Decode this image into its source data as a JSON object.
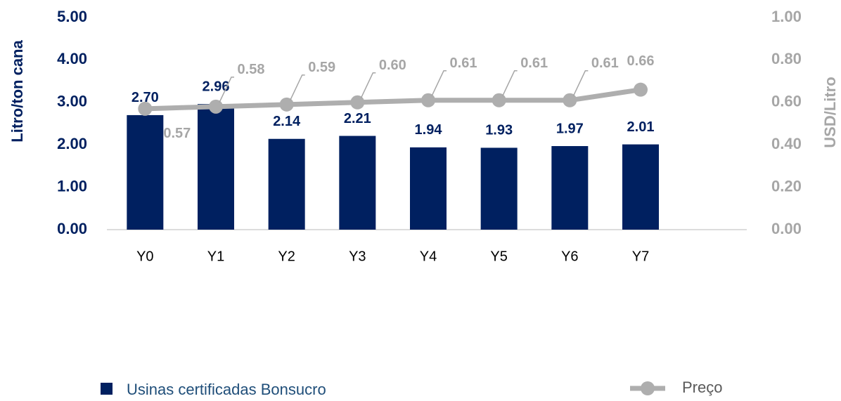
{
  "chart_data": {
    "type": "combo",
    "categories": [
      "Y0",
      "Y1",
      "Y2",
      "Y3",
      "Y4",
      "Y5",
      "Y6",
      "Y7",
      null
    ],
    "series": [
      {
        "name": "Usinas certificadas Bonsucro",
        "type": "bar",
        "color": "#002060",
        "values": [
          2.7,
          2.96,
          2.14,
          2.21,
          1.94,
          1.93,
          1.97,
          2.01,
          null
        ],
        "value_labels": [
          "2.70",
          "2.96",
          "2.14",
          "2.21",
          "1.94",
          "1.93",
          "1.97",
          "2.01",
          null
        ]
      },
      {
        "name": "Preço",
        "type": "line",
        "axis": "y2",
        "color": "#aeaeae",
        "values": [
          0.57,
          0.58,
          0.59,
          0.6,
          0.61,
          0.61,
          0.61,
          0.66,
          null
        ],
        "value_labels": [
          "0.57",
          "0.58",
          "0.59",
          "0.60",
          "0.61",
          "0.61",
          "0.61",
          "0.66",
          null
        ]
      }
    ],
    "y_label": "Litro/ton cana",
    "y2_label": "USD/Litro",
    "ylim": [
      0,
      5
    ],
    "yticks": [
      {
        "value": 0,
        "label": "0.00"
      },
      {
        "value": 1,
        "label": "1.00"
      },
      {
        "value": 2,
        "label": "2.00"
      },
      {
        "value": 3,
        "label": "3.00"
      },
      {
        "value": 4,
        "label": "4.00"
      },
      {
        "value": 5,
        "label": "5.00"
      }
    ],
    "y2lim": [
      0,
      1
    ],
    "y2ticks": [
      {
        "value": 0,
        "label": "0.00"
      },
      {
        "value": 0.2,
        "label": "0.20"
      },
      {
        "value": 0.4,
        "label": "0.40"
      },
      {
        "value": 0.6,
        "label": "0.60"
      },
      {
        "value": 0.8,
        "label": "0.80"
      },
      {
        "value": 1,
        "label": "1.00"
      }
    ],
    "legend": "bottom"
  }
}
